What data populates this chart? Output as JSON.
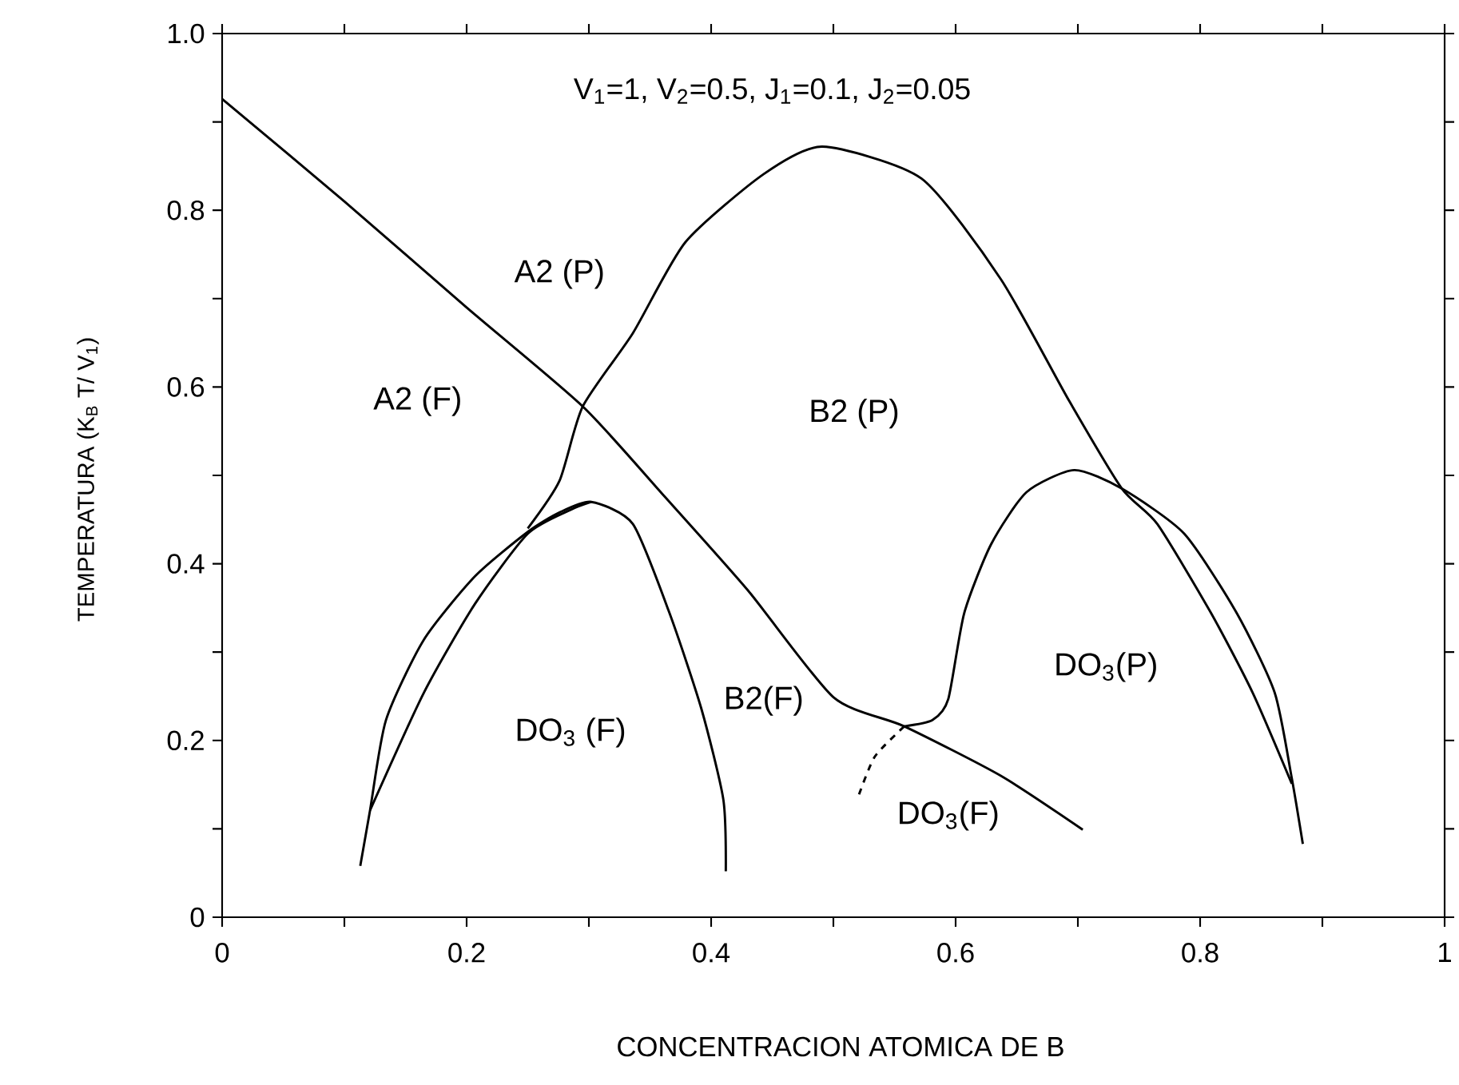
{
  "chart_data": {
    "type": "line",
    "xlabel": "CONCENTRACION ATOMICA DE  B",
    "ylabel": "TEMPERATURA   (K$_{B}$ T/ V$_{1}$)",
    "xlim": [
      0,
      1
    ],
    "ylim": [
      0,
      1
    ],
    "xticks": [
      0,
      {
        "value": 0.1,
        "label": null
      },
      0.2,
      {
        "value": 0.3,
        "label": null
      },
      0.4,
      {
        "value": 0.5,
        "label": null
      },
      0.6,
      {
        "value": 0.7,
        "label": null
      },
      0.8,
      {
        "value": 0.9,
        "label": null
      },
      1
    ],
    "yticks": [
      0,
      {
        "value": 0.1,
        "label": null
      },
      0.2,
      {
        "value": 0.3,
        "label": null
      },
      0.4,
      {
        "value": 0.5,
        "label": null
      },
      0.6,
      {
        "value": 0.7,
        "label": null
      },
      0.8,
      {
        "value": 0.9,
        "label": null
      },
      {
        "value": 1,
        "label": "1.0"
      }
    ],
    "grid": false,
    "marker": "none",
    "line_style": "solid",
    "series": [
      {
        "color": "#000000",
        "x": [
          0,
          0.1,
          0.2,
          0.295,
          0.362,
          0.43,
          0.5,
          0.558,
          0.637,
          0.704
        ],
        "values": [
          0.926,
          0.81,
          0.69,
          0.578,
          0.476,
          0.37,
          0.249,
          0.216,
          0.16,
          0.099
        ]
      },
      {
        "color": "#000000",
        "x": [
          0.25,
          0.276,
          0.295,
          0.336,
          0.379,
          0.443,
          0.491,
          0.572,
          0.637,
          0.693,
          0.736,
          0.765,
          0.809,
          0.843,
          0.875
        ],
        "values": [
          0.44,
          0.494,
          0.578,
          0.661,
          0.764,
          0.841,
          0.872,
          0.836,
          0.722,
          0.584,
          0.485,
          0.445,
          0.344,
          0.254,
          0.151
        ]
      },
      {
        "color": "#000000",
        "x": [
          0.113,
          0.121,
          0.134,
          0.165,
          0.207,
          0.25,
          0.276,
          0.302,
          0.336,
          0.366,
          0.392,
          0.41,
          0.412
        ],
        "values": [
          0.058,
          0.121,
          0.223,
          0.314,
          0.386,
          0.436,
          0.458,
          0.47,
          0.445,
          0.344,
          0.236,
          0.133,
          0.052
        ]
      },
      {
        "color": "#000000",
        "x": [
          0.121,
          0.165,
          0.207,
          0.25,
          0.285,
          0.302
        ],
        "values": [
          0.121,
          0.254,
          0.355,
          0.434,
          0.461,
          0.47
        ]
      },
      {
        "color": "#000000",
        "x": [
          0.558,
          0.581,
          0.594,
          0.607,
          0.629,
          0.658,
          0.697,
          0.736,
          0.787,
          0.83,
          0.861,
          0.875,
          0.884
        ],
        "values": [
          0.216,
          0.223,
          0.247,
          0.344,
          0.422,
          0.481,
          0.506,
          0.485,
          0.434,
          0.344,
          0.254,
          0.157,
          0.083
        ]
      },
      {
        "color": "#000000",
        "line_style": "dashed",
        "x": [
          0.521,
          0.534,
          0.558
        ],
        "values": [
          0.139,
          0.182,
          0.216
        ]
      }
    ],
    "annotations": [
      "V$_{1}$=1,   V$_{2}$=0.5,   J$_{1}$=0.1,   J$_{2}$=0.05",
      "A2 (P)",
      "A2 (F)",
      "B2 (P)",
      "DO$_{3}$ (F)",
      "B2(F)",
      "DO$_{3}$(P)",
      "DO$_{3}$(F)"
    ]
  }
}
